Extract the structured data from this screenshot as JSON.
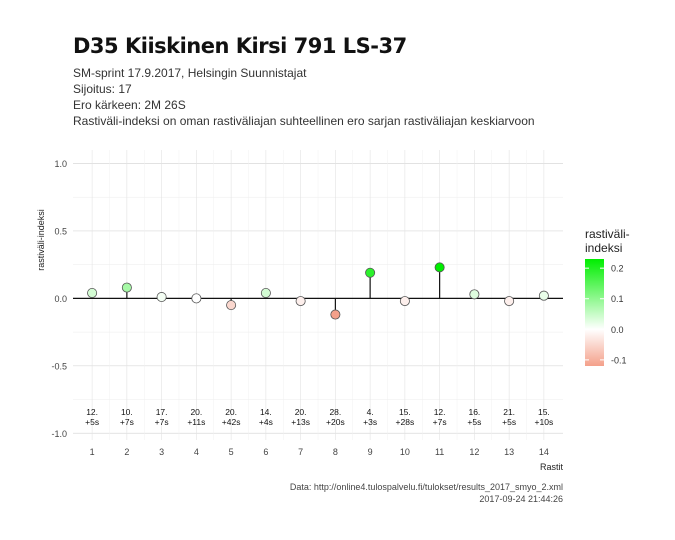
{
  "header": {
    "title": "D35 Kiiskinen Kirsi 791 LS-37",
    "subtitle_lines": [
      "SM-sprint 17.9.2017, Helsingin Suunnistajat",
      "Sijoitus: 17",
      "Ero kärkeen: 2M 26S",
      "Rastiväli-indeksi on oman rastiväliajan suhteellinen ero sarjan rastiväliajan keskiarvoon"
    ]
  },
  "caption": {
    "source": "Data: http://online4.tulospalvelu.fi/tulokset/results_2017_smyo_2.xml",
    "timestamp": "2017-09-24 21:44:26"
  },
  "chart_data": {
    "type": "scatter",
    "xlabel": "Rastit",
    "ylabel": "rastiväli-indeksi",
    "ylim": [
      -1.0,
      1.0
    ],
    "xlim": [
      1,
      14
    ],
    "yticks": [
      -1.0,
      -0.5,
      0.0,
      0.5,
      1.0
    ],
    "ytick_labels": [
      "-1.0",
      "-0.5",
      "0.0",
      "0.5",
      "1.0"
    ],
    "x": [
      1,
      2,
      3,
      4,
      5,
      6,
      7,
      8,
      9,
      10,
      11,
      12,
      13,
      14
    ],
    "values": [
      0.04,
      0.08,
      0.01,
      0.0,
      -0.05,
      0.04,
      -0.02,
      -0.12,
      0.19,
      -0.02,
      0.23,
      0.03,
      -0.02,
      0.02
    ],
    "annotations": [
      [
        "12.",
        "+5s"
      ],
      [
        "10.",
        "+7s"
      ],
      [
        "17.",
        "+7s"
      ],
      [
        "20.",
        "+11s"
      ],
      [
        "20.",
        "+42s"
      ],
      [
        "14.",
        "+4s"
      ],
      [
        "20.",
        "+13s"
      ],
      [
        "28.",
        "+20s"
      ],
      [
        "4.",
        "+3s"
      ],
      [
        "15.",
        "+28s"
      ],
      [
        "12.",
        "+7s"
      ],
      [
        "16.",
        "+5s"
      ],
      [
        "21.",
        "+5s"
      ],
      [
        "15.",
        "+10s"
      ]
    ],
    "grid": true,
    "legend": {
      "title_lines": [
        "rastiväli-",
        "indeksi"
      ],
      "placement": "right",
      "min": -0.12,
      "max": 0.23,
      "ticks": [
        0.2,
        0.1,
        0.0,
        -0.1
      ],
      "tick_labels": [
        "0.2",
        "0.1",
        "0.0",
        "-0.1"
      ],
      "colors": {
        "high": "#00ee00",
        "mid": "#ffffff",
        "low": "#f4a08a"
      }
    }
  }
}
